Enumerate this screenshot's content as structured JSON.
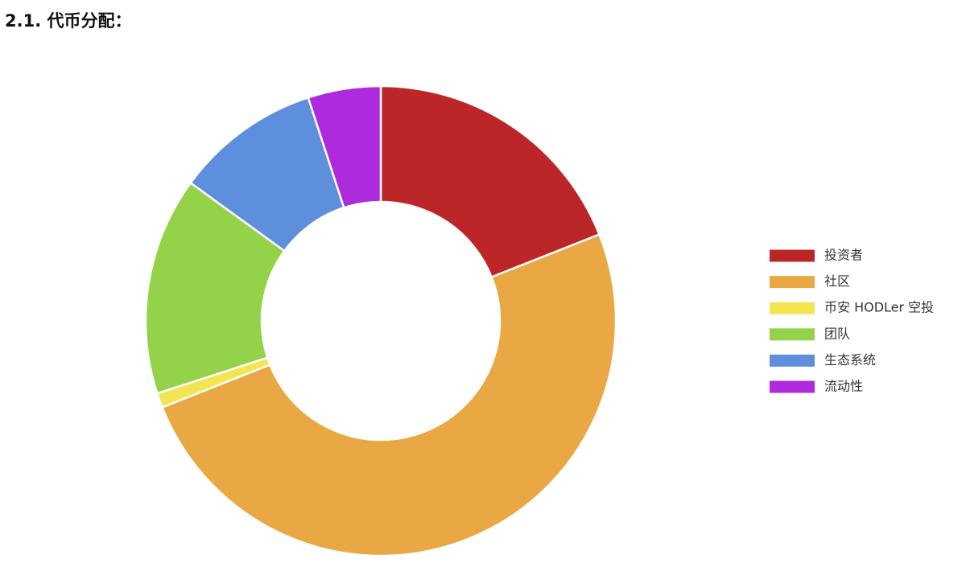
{
  "chart_data": {
    "type": "donut",
    "title": "2.1. 代币分配：",
    "categories": [
      "投资者",
      "社区",
      "币安 HODLer 空投",
      "团队",
      "生态系统",
      "流动性"
    ],
    "values": [
      19,
      50,
      1,
      15,
      10,
      5
    ],
    "colors": [
      "#bd2629",
      "#e9a843",
      "#f3e552",
      "#94d24a",
      "#5d8fdc",
      "#ae2adc"
    ],
    "legend": "right"
  }
}
